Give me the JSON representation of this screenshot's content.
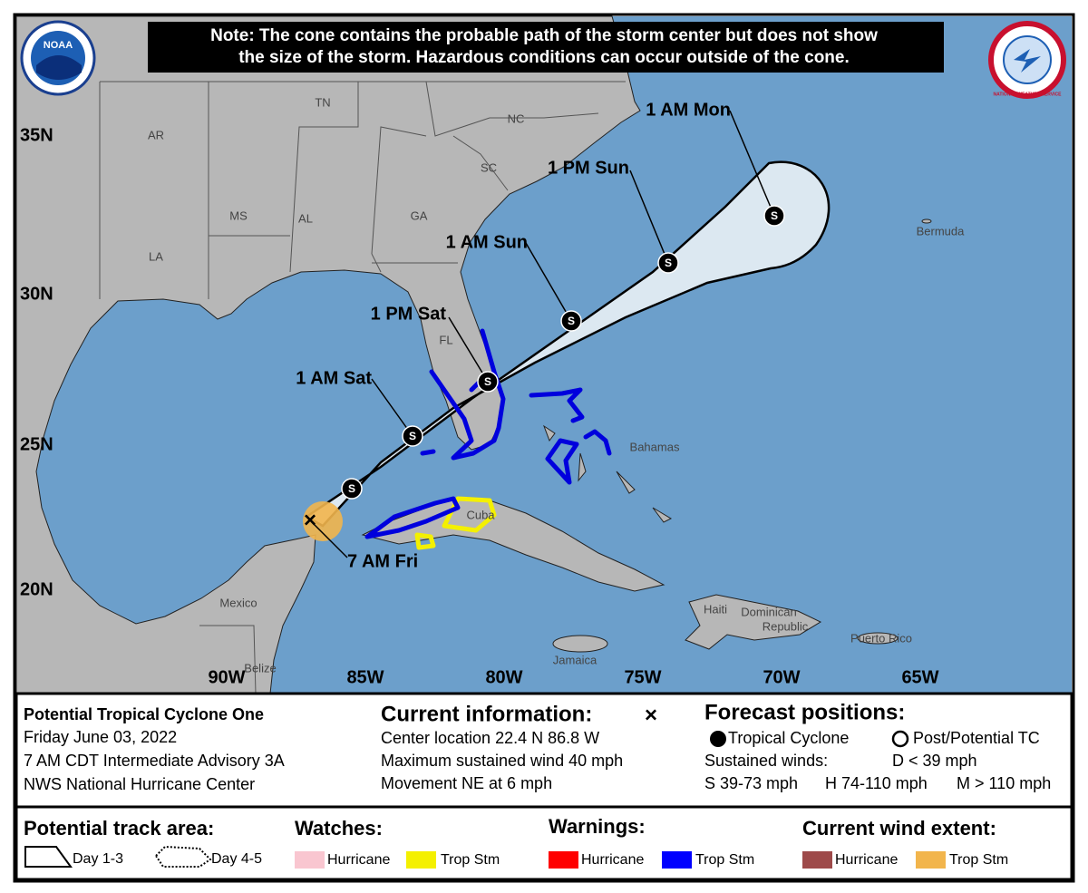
{
  "note": {
    "line1": "Note: The cone contains the probable path of the storm center but does not show",
    "line2": "the size of the storm. Hazardous conditions can occur outside of the cone."
  },
  "logos": {
    "noaa": "NOAA",
    "nws": "NATIONAL WEATHER SERVICE"
  },
  "map": {
    "latitude_labels": [
      "35N",
      "30N",
      "25N",
      "20N"
    ],
    "longitude_labels": [
      "90W",
      "85W",
      "80W",
      "75W",
      "70W",
      "65W"
    ],
    "place_labels": [
      "TN",
      "NC",
      "AR",
      "SC",
      "MS",
      "AL",
      "GA",
      "LA",
      "FL",
      "Bermuda",
      "Bahamas",
      "Cuba",
      "Mexico",
      "Haiti",
      "Dominican",
      "Republic",
      "Puerto Rico",
      "Jamaica",
      "Belize"
    ]
  },
  "forecast": {
    "current": {
      "marker": "×",
      "label": "7 AM Fri"
    },
    "points": [
      {
        "symbol": "S"
      },
      {
        "symbol": "S",
        "label": "1 AM Sat"
      },
      {
        "symbol": "S",
        "label": "1 PM Sat"
      },
      {
        "symbol": "S",
        "label": "1 AM Sun"
      },
      {
        "symbol": "S",
        "label": "1 PM Sun"
      },
      {
        "symbol": "S",
        "label": "1 AM Mon"
      }
    ]
  },
  "info": {
    "storm": {
      "name": "Potential Tropical Cyclone One",
      "date": "Friday June 03, 2022",
      "advisory": "7 AM CDT Intermediate Advisory 3A",
      "office": "NWS National Hurricane Center"
    },
    "current": {
      "heading": "Current information:",
      "marker": "×",
      "location": "Center location 22.4 N 86.8 W",
      "wind": "Maximum sustained wind 40 mph",
      "movement": "Movement NE at 6 mph"
    },
    "forecast_positions": {
      "heading": "Forecast positions:",
      "tropical": "Tropical Cyclone",
      "post": "Post/Potential TC",
      "sustained": "Sustained winds:",
      "d": "D < 39 mph",
      "s": "S 39-73 mph",
      "h": "H 74-110 mph",
      "m": "M > 110 mph"
    }
  },
  "legend": {
    "track": {
      "heading": "Potential track area:",
      "day13": "Day 1-3",
      "day45": "Day 4-5"
    },
    "watches": {
      "heading": "Watches:",
      "hurricane": "Hurricane",
      "trop": "Trop Stm"
    },
    "warnings": {
      "heading": "Warnings:",
      "hurricane": "Hurricane",
      "trop": "Trop Stm"
    },
    "wind": {
      "heading": "Current wind extent:",
      "hurricane": "Hurricane",
      "trop": "Trop Stm"
    }
  }
}
